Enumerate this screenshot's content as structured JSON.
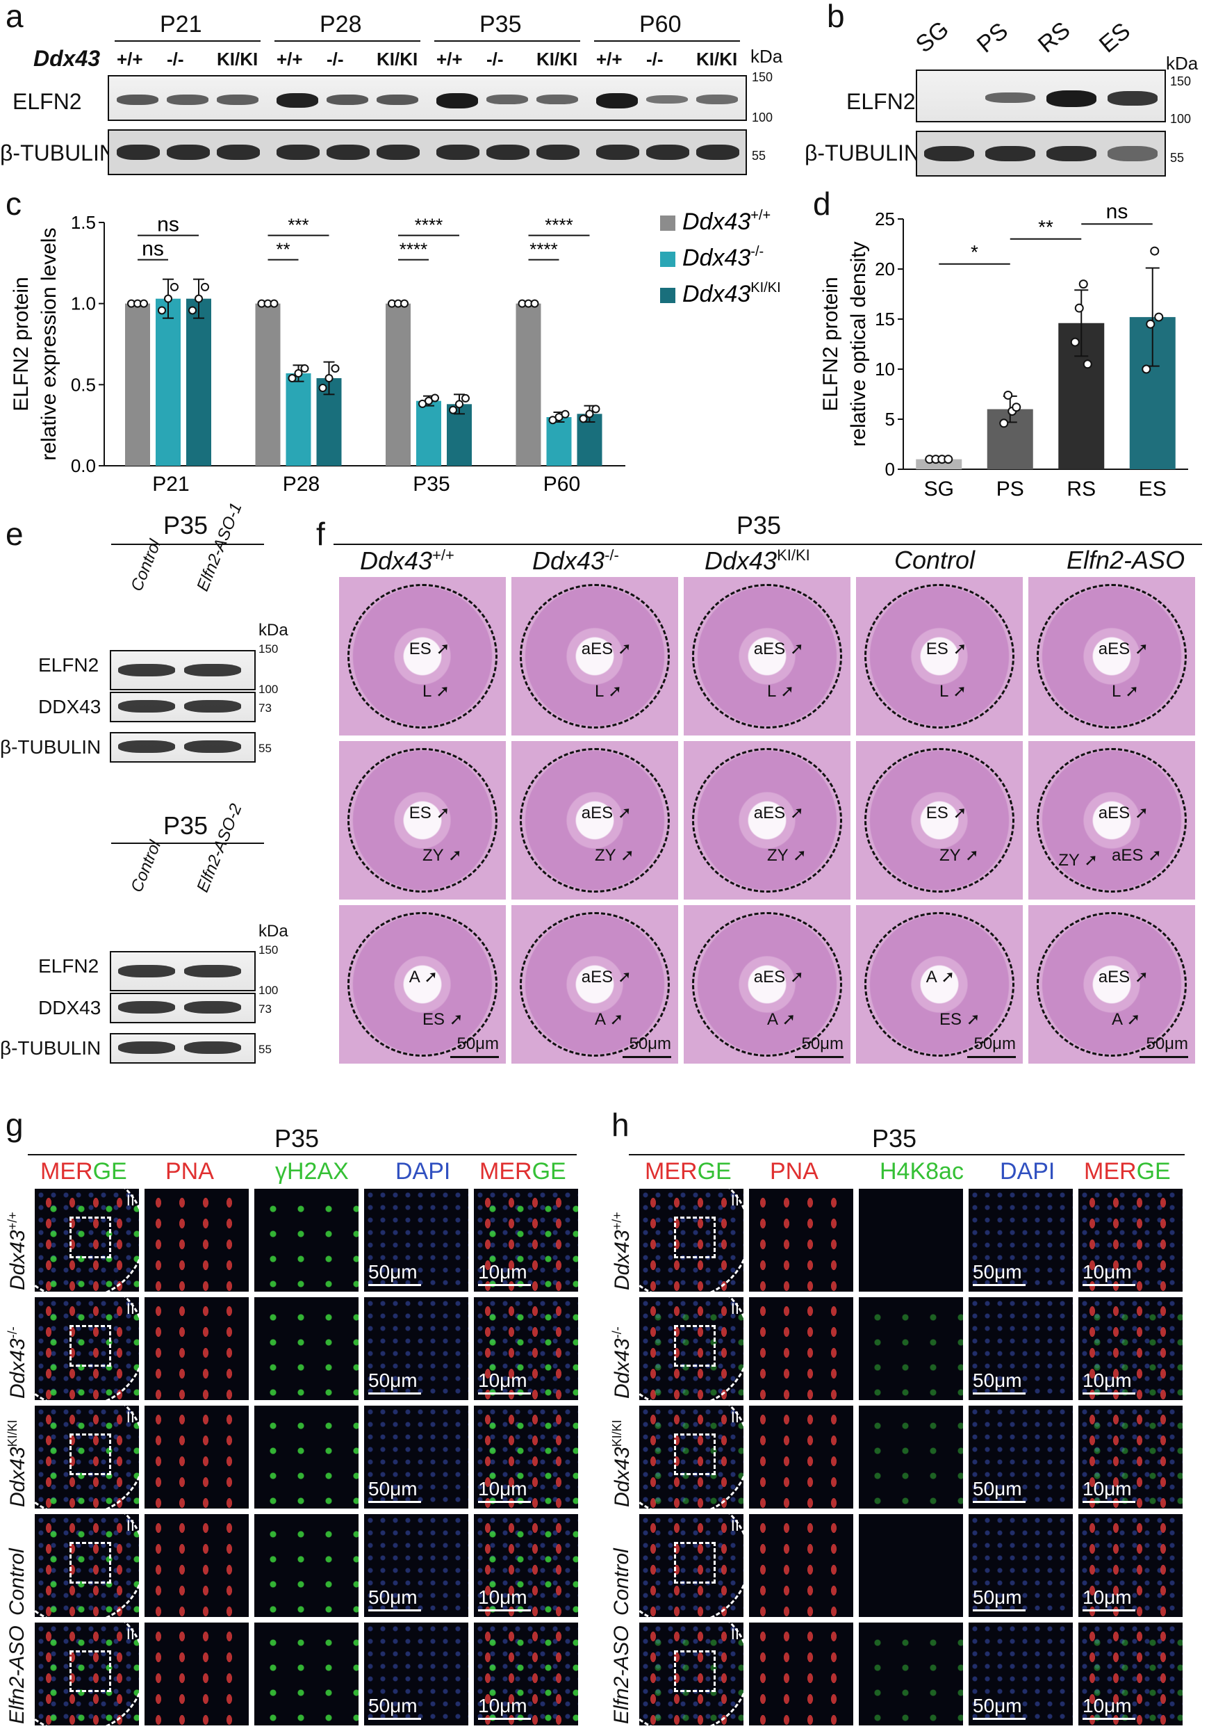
{
  "panel_letters": {
    "a": "a",
    "b": "b",
    "c": "c",
    "d": "d",
    "e": "e",
    "f": "f",
    "g": "g",
    "h": "h"
  },
  "panel_a": {
    "stages": [
      "P21",
      "P28",
      "P35",
      "P60"
    ],
    "gene_label": "Ddx43",
    "genotypes": [
      "+/+",
      "-/-",
      "KI/KI"
    ],
    "kda": "kDa",
    "rows": [
      "ELFN2",
      "β-TUBULIN"
    ],
    "markers": {
      "m150": "150",
      "m100": "100",
      "m55": "55"
    },
    "elfn2_band_intensity": [
      0.55,
      0.5,
      0.5,
      0.95,
      0.55,
      0.55,
      1.0,
      0.45,
      0.45,
      1.0,
      0.35,
      0.4
    ]
  },
  "panel_b": {
    "cells": [
      "SG",
      "PS",
      "RS",
      "ES"
    ],
    "kda": "kDa",
    "rows": [
      "ELFN2",
      "β-TUBULIN"
    ],
    "markers": {
      "m150": "150",
      "m100": "100",
      "m55": "55"
    },
    "elfn2_band_intensity": [
      0.0,
      0.45,
      1.0,
      0.8
    ]
  },
  "chart_c": {
    "type": "bar",
    "ylabel_line1": "ELFN2 protein",
    "ylabel_line2": "relative expression levels",
    "ylim": [
      0,
      1.5
    ],
    "yticks": [
      "0.0",
      "0.5",
      "1.0",
      "1.5"
    ],
    "categories": [
      "P21",
      "P28",
      "P35",
      "P60"
    ],
    "series": [
      {
        "name": "Ddx43",
        "sup": "+/+",
        "color": "#8c8c8c",
        "values": [
          1.0,
          1.0,
          1.0,
          1.0
        ],
        "err": [
          0,
          0,
          0,
          0
        ]
      },
      {
        "name": "Ddx43",
        "sup": "-/-",
        "color": "#2aa6b5",
        "values": [
          1.03,
          0.57,
          0.4,
          0.3
        ],
        "err": [
          0.12,
          0.05,
          0.03,
          0.03
        ]
      },
      {
        "name": "Ddx43",
        "sup": "KI/KI",
        "color": "#196f7c",
        "values": [
          1.03,
          0.54,
          0.38,
          0.32
        ],
        "err": [
          0.12,
          0.1,
          0.06,
          0.05
        ]
      }
    ],
    "sig": [
      {
        "group": 0,
        "from": 0,
        "to": 1,
        "label": "ns",
        "level": 1.27
      },
      {
        "group": 0,
        "from": 0,
        "to": 2,
        "label": "ns",
        "level": 1.42
      },
      {
        "group": 1,
        "from": 0,
        "to": 1,
        "label": "**",
        "level": 1.27
      },
      {
        "group": 1,
        "from": 0,
        "to": 2,
        "label": "***",
        "level": 1.42
      },
      {
        "group": 2,
        "from": 0,
        "to": 1,
        "label": "****",
        "level": 1.27
      },
      {
        "group": 2,
        "from": 0,
        "to": 2,
        "label": "****",
        "level": 1.42
      },
      {
        "group": 3,
        "from": 0,
        "to": 1,
        "label": "****",
        "level": 1.27
      },
      {
        "group": 3,
        "from": 0,
        "to": 2,
        "label": "****",
        "level": 1.42
      }
    ]
  },
  "chart_d": {
    "type": "bar",
    "ylabel_line1": "ELFN2 protein",
    "ylabel_line2": "relative optical density",
    "ylim": [
      0,
      25
    ],
    "yticks": [
      "0",
      "5",
      "10",
      "15",
      "20",
      "25"
    ],
    "categories": [
      "SG",
      "PS",
      "RS",
      "ES"
    ],
    "colors": [
      "#b5b5b5",
      "#5f5f5f",
      "#2e2e2e",
      "#1f6f7c"
    ],
    "values": [
      1.0,
      6.0,
      14.6,
      15.2
    ],
    "err": [
      0,
      1.3,
      3.3,
      4.9
    ],
    "points": [
      [
        1,
        1,
        1,
        1
      ],
      [
        4.6,
        7.4,
        5.8,
        6.2
      ],
      [
        12.7,
        16.1,
        18.5,
        10.5
      ],
      [
        10.0,
        14.5,
        21.8,
        15.2
      ]
    ],
    "sig": [
      {
        "from": 0,
        "to": 1,
        "label": "*",
        "level": 20.5
      },
      {
        "from": 1,
        "to": 2,
        "label": "**",
        "level": 23.0
      },
      {
        "from": 2,
        "to": 3,
        "label": "ns",
        "level": 24.5
      }
    ]
  },
  "panel_e": {
    "stage": "P35",
    "lanes1": [
      "Control",
      "Elfn2-ASO-1"
    ],
    "lanes2": [
      "Control",
      "Elfn2-ASO-2"
    ],
    "kda": "kDa",
    "rows": [
      "ELFN2",
      "DDX43",
      "β-TUBULIN"
    ],
    "markers": {
      "m150": "150",
      "m100": "100",
      "m73": "73",
      "m55": "55"
    }
  },
  "panel_f": {
    "stage": "P35",
    "columns": [
      {
        "name": "Ddx43",
        "sup": "+/+"
      },
      {
        "name": "Ddx43",
        "sup": "-/-"
      },
      {
        "name": "Ddx43",
        "sup": "KI/KI"
      },
      {
        "name": "Control",
        "sup": ""
      },
      {
        "name": "Elfn2-ASO",
        "sup": ""
      }
    ],
    "scalebar": "50μm",
    "annotations": [
      [
        "ES",
        "L"
      ],
      [
        "aES",
        "L"
      ],
      [
        "aES",
        "L"
      ],
      [
        "ES",
        "L"
      ],
      [
        "aES",
        "L"
      ],
      [
        "ES",
        "ZY"
      ],
      [
        "aES",
        "ZY"
      ],
      [
        "aES",
        "ZY"
      ],
      [
        "ES",
        "ZY"
      ],
      [
        "aES",
        "aES",
        "ZY"
      ],
      [
        "A",
        "ES"
      ],
      [
        "aES",
        "A"
      ],
      [
        "aES",
        "A"
      ],
      [
        "A",
        "ES"
      ],
      [
        "aES",
        "A"
      ]
    ]
  },
  "panel_g": {
    "stage": "P35",
    "channels": [
      "MERGE",
      "PNA",
      "γH2AX",
      "DAPI",
      "MERGE"
    ],
    "rows": [
      {
        "name": "Ddx43",
        "sup": "+/+"
      },
      {
        "name": "Ddx43",
        "sup": "-/-"
      },
      {
        "name": "Ddx43",
        "sup": "KI/KI"
      },
      {
        "name": "Control",
        "sup": ""
      },
      {
        "name": "Elfn2-ASO",
        "sup": ""
      }
    ],
    "roman": "II",
    "scale_large": "50μm",
    "scale_small": "10μm"
  },
  "panel_h": {
    "stage": "P35",
    "channels": [
      "MERGE",
      "PNA",
      "H4K8ac",
      "DAPI",
      "MERGE"
    ],
    "rows": [
      {
        "name": "Ddx43",
        "sup": "+/+"
      },
      {
        "name": "Ddx43",
        "sup": "-/-"
      },
      {
        "name": "Ddx43",
        "sup": "KI/KI"
      },
      {
        "name": "Control",
        "sup": ""
      },
      {
        "name": "Elfn2-ASO",
        "sup": ""
      }
    ],
    "roman": "II",
    "scale_large": "50μm",
    "scale_small": "10μm"
  }
}
